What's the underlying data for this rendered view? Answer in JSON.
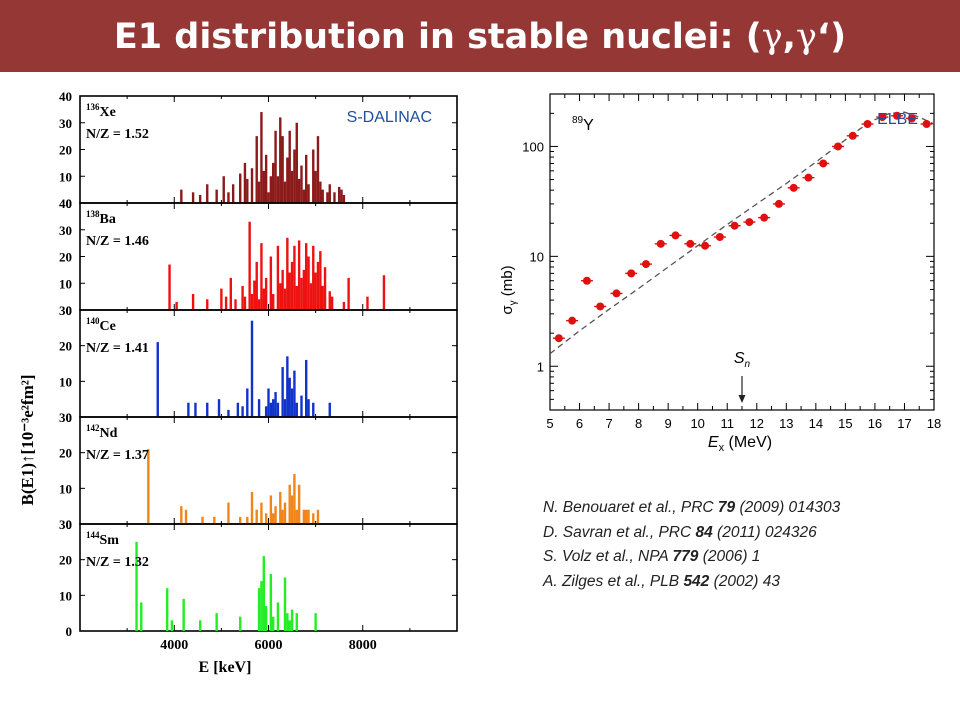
{
  "title": {
    "text": "E1 distribution in stable nuclei: (",
    "gamma1": "γ",
    "comma": ",",
    "gamma2": "γ",
    "prime": "‘",
    "close": ")"
  },
  "colors": {
    "title_bar": "#953735",
    "Xe": "#8b1a1a",
    "Ba": "#ee1111",
    "Ce": "#1133cc",
    "Nd": "#f0861a",
    "Sm": "#22ee22",
    "elbe_points": "#e01010",
    "text_blue": "#1f4e9a"
  },
  "references": [
    {
      "pre": "N. Benouaret et al., PRC ",
      "vol": "79",
      "post": " (2009) 014303"
    },
    {
      "pre": "D. Savran et al., PRC  ",
      "vol": "84",
      "post": " (2011) 024326"
    },
    {
      "pre": "S. Volz et al., NPA ",
      "vol": "779",
      "post": " (2006) 1"
    },
    {
      "pre": "A. Zilges et al., PLB ",
      "vol": "542",
      "post": " (2002) 43"
    }
  ],
  "chart_data": [
    {
      "type": "bar",
      "facility": "S-DALINAC",
      "xlabel": "E [keV]",
      "ylabel": "B(E1)↑[10⁻³e²fm²]",
      "xlim": [
        2000,
        10000
      ],
      "xticks": [
        4000,
        6000,
        8000
      ],
      "panels": [
        {
          "name": "Xe",
          "mass": "136",
          "nz": "N/Z = 1.52",
          "color_key": "Xe",
          "ylim": [
            0,
            40
          ],
          "yticks": [
            0,
            10,
            20,
            30,
            40
          ],
          "bars": [
            [
              4150,
              5
            ],
            [
              4400,
              4
            ],
            [
              4550,
              3
            ],
            [
              4700,
              7
            ],
            [
              4900,
              5
            ],
            [
              5050,
              10
            ],
            [
              5150,
              4
            ],
            [
              5250,
              7
            ],
            [
              5400,
              11
            ],
            [
              5500,
              15
            ],
            [
              5550,
              9
            ],
            [
              5650,
              13
            ],
            [
              5750,
              25
            ],
            [
              5800,
              8
            ],
            [
              5850,
              34
            ],
            [
              5900,
              12
            ],
            [
              5950,
              18
            ],
            [
              6000,
              4
            ],
            [
              6050,
              10
            ],
            [
              6100,
              15
            ],
            [
              6150,
              27
            ],
            [
              6200,
              10
            ],
            [
              6250,
              32
            ],
            [
              6300,
              25
            ],
            [
              6350,
              8
            ],
            [
              6400,
              17
            ],
            [
              6450,
              27
            ],
            [
              6500,
              12
            ],
            [
              6550,
              20
            ],
            [
              6600,
              30
            ],
            [
              6650,
              9
            ],
            [
              6700,
              14
            ],
            [
              6750,
              5
            ],
            [
              6800,
              18
            ],
            [
              6850,
              7
            ],
            [
              6950,
              20
            ],
            [
              7000,
              12
            ],
            [
              7050,
              25
            ],
            [
              7100,
              8
            ],
            [
              7150,
              5
            ],
            [
              7250,
              4
            ],
            [
              7300,
              7
            ],
            [
              7400,
              4
            ],
            [
              7500,
              6
            ],
            [
              7550,
              5
            ],
            [
              7600,
              3
            ]
          ]
        },
        {
          "name": "Ba",
          "mass": "138",
          "nz": "N/Z = 1.46",
          "color_key": "Ba",
          "ylim": [
            0,
            40
          ],
          "yticks": [
            0,
            10,
            20,
            30,
            40
          ],
          "bars": [
            [
              3900,
              17
            ],
            [
              4050,
              3
            ],
            [
              4400,
              6
            ],
            [
              4700,
              4
            ],
            [
              5000,
              8
            ],
            [
              5100,
              5
            ],
            [
              5200,
              12
            ],
            [
              5300,
              4
            ],
            [
              5450,
              9
            ],
            [
              5500,
              5
            ],
            [
              5600,
              33
            ],
            [
              5650,
              6
            ],
            [
              5700,
              11
            ],
            [
              5750,
              18
            ],
            [
              5800,
              4
            ],
            [
              5850,
              25
            ],
            [
              5900,
              8
            ],
            [
              5950,
              12
            ],
            [
              6050,
              20
            ],
            [
              6100,
              6
            ],
            [
              6200,
              24
            ],
            [
              6250,
              10
            ],
            [
              6300,
              15
            ],
            [
              6350,
              8
            ],
            [
              6400,
              27
            ],
            [
              6450,
              14
            ],
            [
              6500,
              18
            ],
            [
              6550,
              24
            ],
            [
              6600,
              9
            ],
            [
              6650,
              26
            ],
            [
              6700,
              12
            ],
            [
              6750,
              15
            ],
            [
              6800,
              25
            ],
            [
              6850,
              20
            ],
            [
              6900,
              10
            ],
            [
              6950,
              24
            ],
            [
              7000,
              14
            ],
            [
              7050,
              18
            ],
            [
              7100,
              22
            ],
            [
              7150,
              9
            ],
            [
              7200,
              16
            ],
            [
              7300,
              7
            ],
            [
              7350,
              5
            ],
            [
              7600,
              3
            ],
            [
              7700,
              12
            ],
            [
              8100,
              5
            ],
            [
              8450,
              13
            ]
          ]
        },
        {
          "name": "Ce",
          "mass": "140",
          "nz": "N/Z = 1.41",
          "color_key": "Ce",
          "ylim": [
            0,
            30
          ],
          "yticks": [
            0,
            10,
            20,
            30
          ],
          "bars": [
            [
              3650,
              21
            ],
            [
              4300,
              4
            ],
            [
              4450,
              4
            ],
            [
              4700,
              4
            ],
            [
              4950,
              5
            ],
            [
              5150,
              2
            ],
            [
              5350,
              4
            ],
            [
              5450,
              3
            ],
            [
              5550,
              8
            ],
            [
              5650,
              27
            ],
            [
              5800,
              5
            ],
            [
              5950,
              3
            ],
            [
              6000,
              8
            ],
            [
              6050,
              4
            ],
            [
              6100,
              5
            ],
            [
              6150,
              7
            ],
            [
              6200,
              4
            ],
            [
              6300,
              14
            ],
            [
              6350,
              5
            ],
            [
              6400,
              17
            ],
            [
              6450,
              11
            ],
            [
              6500,
              8
            ],
            [
              6550,
              13
            ],
            [
              6600,
              4
            ],
            [
              6700,
              6
            ],
            [
              6800,
              16
            ],
            [
              6850,
              5
            ],
            [
              6950,
              4
            ],
            [
              7300,
              4
            ]
          ]
        },
        {
          "name": "Nd",
          "mass": "142",
          "nz": "N/Z = 1.37",
          "color_key": "Nd",
          "ylim": [
            0,
            30
          ],
          "yticks": [
            0,
            10,
            20,
            30
          ],
          "bars": [
            [
              3450,
              21
            ],
            [
              4150,
              5
            ],
            [
              4250,
              4
            ],
            [
              4600,
              2
            ],
            [
              4850,
              2
            ],
            [
              5150,
              6
            ],
            [
              5400,
              2
            ],
            [
              5550,
              2
            ],
            [
              5650,
              9
            ],
            [
              5750,
              4
            ],
            [
              5850,
              6
            ],
            [
              5950,
              3
            ],
            [
              6050,
              8
            ],
            [
              6100,
              3
            ],
            [
              6150,
              5
            ],
            [
              6250,
              9
            ],
            [
              6300,
              4
            ],
            [
              6350,
              6
            ],
            [
              6450,
              11
            ],
            [
              6500,
              8
            ],
            [
              6550,
              14
            ],
            [
              6600,
              4
            ],
            [
              6650,
              11
            ],
            [
              6750,
              4
            ],
            [
              6800,
              4
            ],
            [
              6850,
              4
            ],
            [
              6950,
              3
            ],
            [
              7050,
              4
            ]
          ]
        },
        {
          "name": "Sm",
          "mass": "144",
          "nz": "N/Z = 1.32",
          "color_key": "Sm",
          "ylim": [
            0,
            30
          ],
          "yticks": [
            0,
            10,
            20,
            30
          ],
          "bars": [
            [
              3200,
              25
            ],
            [
              3300,
              8
            ],
            [
              3850,
              12
            ],
            [
              3950,
              3
            ],
            [
              4200,
              9
            ],
            [
              4550,
              3
            ],
            [
              4900,
              5
            ],
            [
              5400,
              4
            ],
            [
              5800,
              12
            ],
            [
              5850,
              14
            ],
            [
              5900,
              21
            ],
            [
              5950,
              7
            ],
            [
              6050,
              16
            ],
            [
              6100,
              4
            ],
            [
              6200,
              8
            ],
            [
              6350,
              15
            ],
            [
              6400,
              5
            ],
            [
              6450,
              3
            ],
            [
              6500,
              6
            ],
            [
              6600,
              5
            ],
            [
              7000,
              5
            ]
          ]
        }
      ]
    },
    {
      "type": "scatter",
      "facility": "ELBE",
      "nucleus_mass": "89",
      "nucleus": "Y",
      "xlabel_main": "E",
      "xlabel_sub": "x",
      "xlabel_unit": " (MeV)",
      "ylabel_main": "σ",
      "ylabel_sub": "γ",
      "ylabel_unit": " (mb)",
      "annotation_main": "S",
      "annotation_sub": "n",
      "annotation_x": 11.5,
      "xlim": [
        5,
        18
      ],
      "xticks": [
        5,
        6,
        7,
        8,
        9,
        10,
        11,
        12,
        13,
        14,
        15,
        16,
        17,
        18
      ],
      "ylim": [
        0.4,
        300
      ],
      "yscale": "log",
      "yticks": [
        1,
        10,
        100
      ],
      "yticklabels": [
        "1",
        "10",
        "100"
      ],
      "points": [
        [
          5.3,
          1.8
        ],
        [
          5.75,
          2.6
        ],
        [
          6.25,
          6.0
        ],
        [
          6.7,
          3.5
        ],
        [
          7.25,
          4.6
        ],
        [
          7.75,
          7.0
        ],
        [
          8.25,
          8.5
        ],
        [
          8.75,
          13
        ],
        [
          9.25,
          15.5
        ],
        [
          9.75,
          13
        ],
        [
          10.25,
          12.5
        ],
        [
          10.75,
          15
        ],
        [
          11.25,
          19
        ],
        [
          11.75,
          20.5
        ],
        [
          12.25,
          22.5
        ],
        [
          12.75,
          30
        ],
        [
          13.25,
          42
        ],
        [
          13.75,
          52
        ],
        [
          14.25,
          70
        ],
        [
          14.75,
          100
        ],
        [
          15.25,
          125
        ],
        [
          15.75,
          160
        ],
        [
          16.25,
          185
        ],
        [
          16.75,
          190
        ],
        [
          17.25,
          180
        ],
        [
          17.75,
          160
        ]
      ],
      "dashed_curve": [
        [
          5.0,
          1.3
        ],
        [
          6,
          2.1
        ],
        [
          7,
          3.3
        ],
        [
          8,
          5.1
        ],
        [
          9,
          8
        ],
        [
          10,
          12.5
        ],
        [
          11,
          19.5
        ],
        [
          12,
          30
        ],
        [
          13,
          46
        ],
        [
          14,
          72
        ],
        [
          15,
          115
        ],
        [
          15.5,
          145
        ],
        [
          16,
          175
        ],
        [
          16.5,
          200
        ],
        [
          17,
          205
        ],
        [
          17.5,
          185
        ],
        [
          18,
          160
        ]
      ]
    }
  ]
}
